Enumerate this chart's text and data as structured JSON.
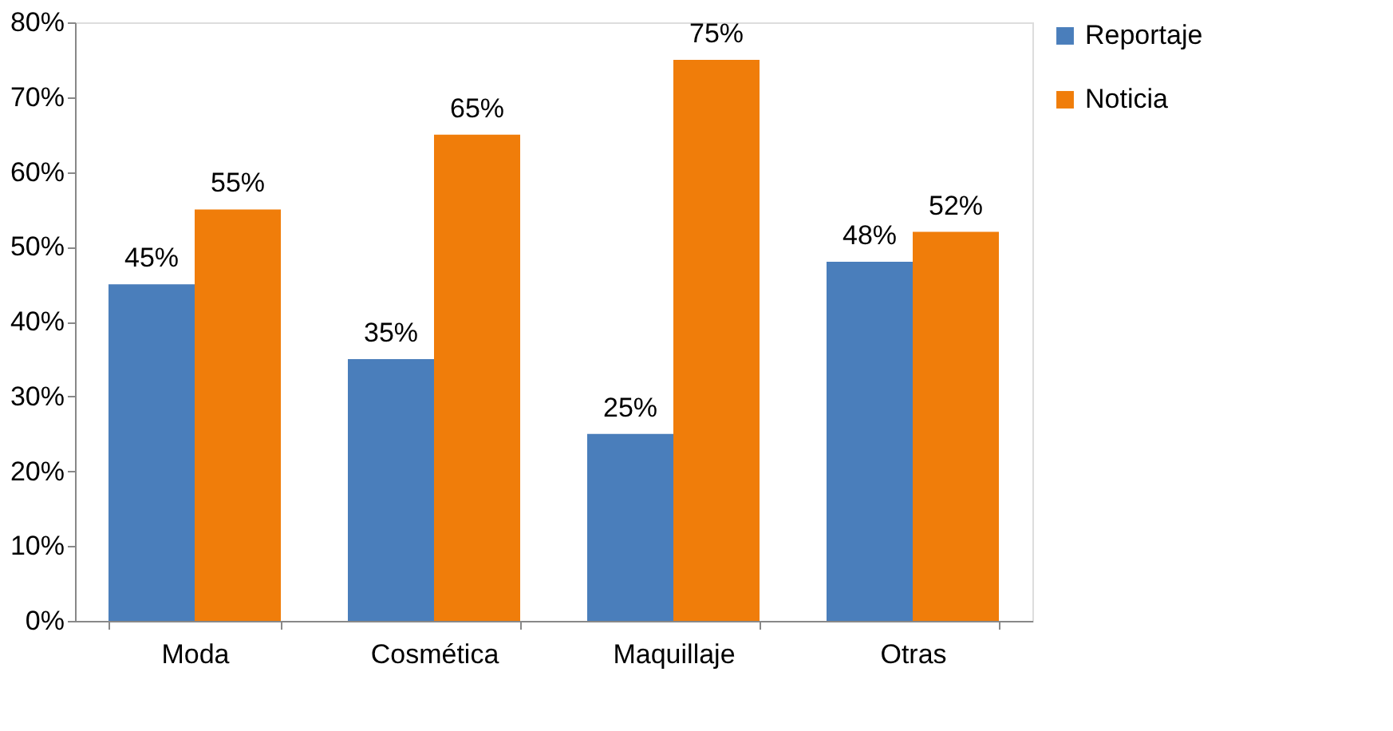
{
  "chart_data": {
    "type": "bar",
    "categories": [
      "Moda",
      "Cosmética",
      "Maquillaje",
      "Otras"
    ],
    "series": [
      {
        "name": "Reportaje",
        "color": "#4a7ebb",
        "values": [
          45,
          35,
          25,
          48
        ],
        "value_labels": [
          "45%",
          "35%",
          "25%",
          "48%"
        ]
      },
      {
        "name": "Noticia",
        "color": "#f07d0a",
        "values": [
          55,
          65,
          75,
          52
        ],
        "value_labels": [
          "55%",
          "65%",
          "75%",
          "52%"
        ]
      }
    ],
    "ylim": [
      0,
      80
    ],
    "yticks": [
      {
        "value": 0,
        "label": "0%"
      },
      {
        "value": 10,
        "label": "10%"
      },
      {
        "value": 20,
        "label": "20%"
      },
      {
        "value": 30,
        "label": "30%"
      },
      {
        "value": 40,
        "label": "40%"
      },
      {
        "value": 50,
        "label": "50%"
      },
      {
        "value": 60,
        "label": "60%"
      },
      {
        "value": 70,
        "label": "70%"
      },
      {
        "value": 80,
        "label": "80%"
      }
    ],
    "grid": false,
    "legend": "right"
  }
}
